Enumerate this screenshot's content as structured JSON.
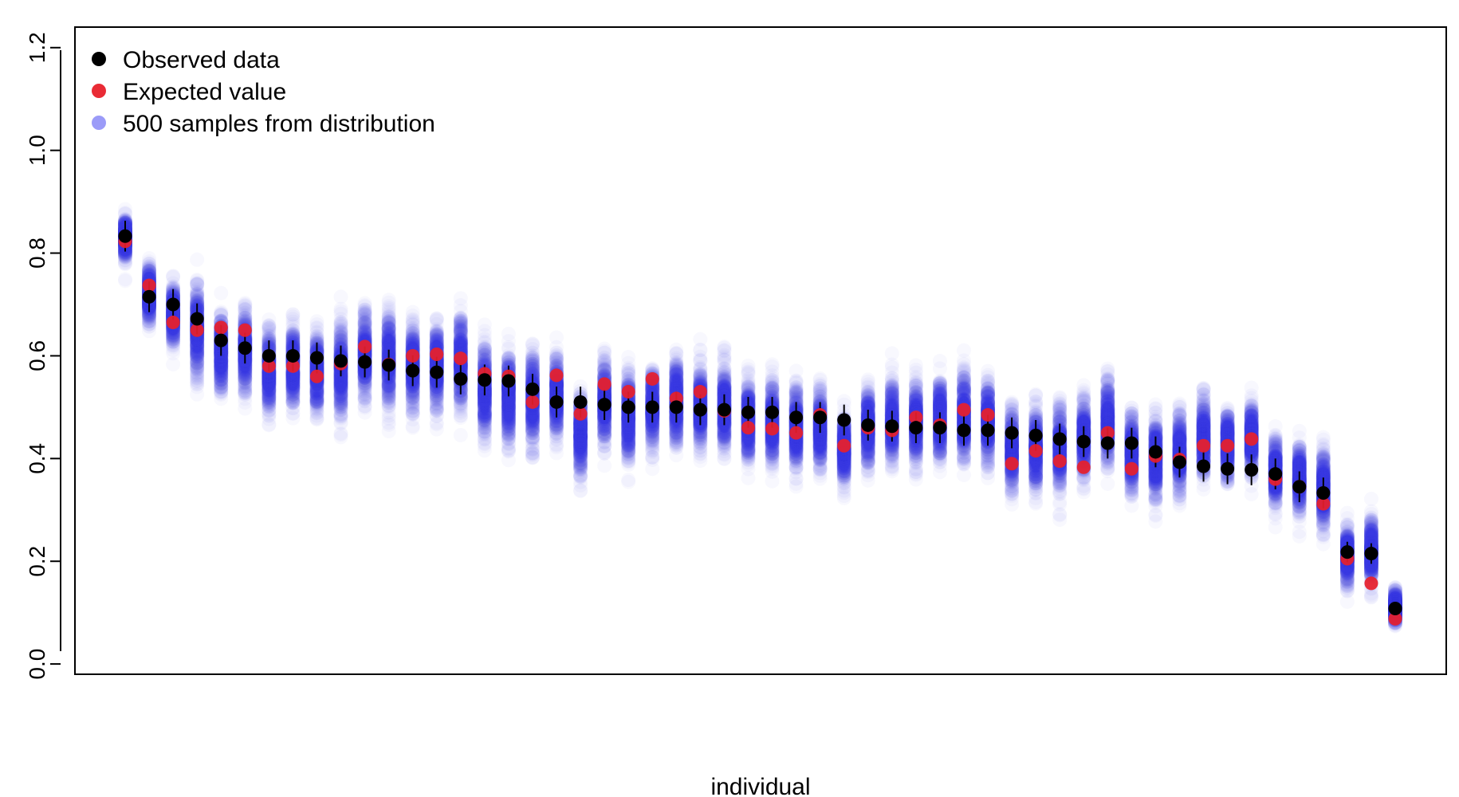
{
  "chart_data": {
    "type": "scatter",
    "title": "",
    "xlabel": "individual",
    "ylabel": "",
    "ylim": [
      -0.02,
      1.24
    ],
    "yticks": [
      "0.0",
      "0.2",
      "0.4",
      "0.6",
      "0.8",
      "1.0",
      "1.2"
    ],
    "grid": false,
    "legend_position": "top-left",
    "colors": {
      "observed": "#000000",
      "expected": "#e8202a",
      "samples": "#3a3af0",
      "errorbar": "#000000"
    },
    "legend": [
      {
        "label": "Observed data",
        "key": "observed"
      },
      {
        "label": "Expected value",
        "key": "expected"
      },
      {
        "label": "500 samples from distribution",
        "key": "samples"
      }
    ],
    "samples_per_individual": 500,
    "series": [
      {
        "key": "observed",
        "values": [
          0.833,
          0.715,
          0.7,
          0.672,
          0.63,
          0.615,
          0.6,
          0.6,
          0.596,
          0.59,
          0.588,
          0.582,
          0.571,
          0.568,
          0.555,
          0.553,
          0.551,
          0.535,
          0.51,
          0.51,
          0.505,
          0.5,
          0.5,
          0.5,
          0.495,
          0.495,
          0.49,
          0.49,
          0.48,
          0.48,
          0.475,
          0.465,
          0.463,
          0.46,
          0.46,
          0.455,
          0.455,
          0.45,
          0.445,
          0.438,
          0.433,
          0.43,
          0.43,
          0.413,
          0.393,
          0.385,
          0.38,
          0.378,
          0.37,
          0.345,
          0.333,
          0.218,
          0.215,
          0.108
        ]
      },
      {
        "key": "expected",
        "values": [
          0.823,
          0.737,
          0.665,
          0.65,
          0.655,
          0.65,
          0.58,
          0.58,
          0.56,
          0.585,
          0.618,
          0.583,
          0.6,
          0.603,
          0.595,
          0.565,
          0.56,
          0.51,
          0.562,
          0.487,
          0.545,
          0.53,
          0.555,
          0.517,
          0.53,
          0.493,
          0.46,
          0.458,
          0.45,
          0.485,
          0.425,
          0.46,
          0.455,
          0.48,
          0.465,
          0.495,
          0.485,
          0.39,
          0.415,
          0.395,
          0.383,
          0.45,
          0.38,
          0.405,
          0.398,
          0.425,
          0.425,
          0.438,
          0.36,
          0.345,
          0.312,
          0.205,
          0.157,
          0.088
        ]
      },
      {
        "key": "samples_mean",
        "values": [
          0.83,
          0.72,
          0.68,
          0.65,
          0.61,
          0.61,
          0.57,
          0.58,
          0.57,
          0.57,
          0.6,
          0.59,
          0.58,
          0.58,
          0.59,
          0.53,
          0.52,
          0.52,
          0.52,
          0.45,
          0.51,
          0.48,
          0.5,
          0.51,
          0.5,
          0.5,
          0.47,
          0.47,
          0.46,
          0.46,
          0.42,
          0.46,
          0.47,
          0.47,
          0.48,
          0.48,
          0.47,
          0.42,
          0.42,
          0.42,
          0.44,
          0.47,
          0.41,
          0.4,
          0.41,
          0.44,
          0.43,
          0.44,
          0.37,
          0.36,
          0.34,
          0.21,
          0.22,
          0.11
        ]
      },
      {
        "key": "samples_spread",
        "values": [
          0.04,
          0.05,
          0.05,
          0.08,
          0.07,
          0.07,
          0.07,
          0.07,
          0.07,
          0.08,
          0.08,
          0.08,
          0.07,
          0.07,
          0.08,
          0.08,
          0.08,
          0.08,
          0.07,
          0.07,
          0.07,
          0.08,
          0.07,
          0.08,
          0.07,
          0.07,
          0.07,
          0.07,
          0.07,
          0.07,
          0.06,
          0.07,
          0.07,
          0.07,
          0.07,
          0.08,
          0.07,
          0.07,
          0.07,
          0.07,
          0.07,
          0.07,
          0.07,
          0.07,
          0.07,
          0.07,
          0.06,
          0.06,
          0.06,
          0.06,
          0.07,
          0.05,
          0.06,
          0.03
        ]
      },
      {
        "key": "observed_error",
        "values": [
          0.03,
          0.03,
          0.03,
          0.03,
          0.03,
          0.03,
          0.03,
          0.03,
          0.03,
          0.03,
          0.03,
          0.03,
          0.03,
          0.03,
          0.03,
          0.03,
          0.03,
          0.03,
          0.03,
          0.03,
          0.03,
          0.03,
          0.03,
          0.03,
          0.03,
          0.03,
          0.03,
          0.03,
          0.03,
          0.03,
          0.03,
          0.03,
          0.03,
          0.03,
          0.03,
          0.03,
          0.03,
          0.03,
          0.03,
          0.03,
          0.03,
          0.03,
          0.03,
          0.03,
          0.03,
          0.03,
          0.03,
          0.03,
          0.03,
          0.03,
          0.03,
          0.02,
          0.02,
          0.01
        ]
      }
    ]
  }
}
